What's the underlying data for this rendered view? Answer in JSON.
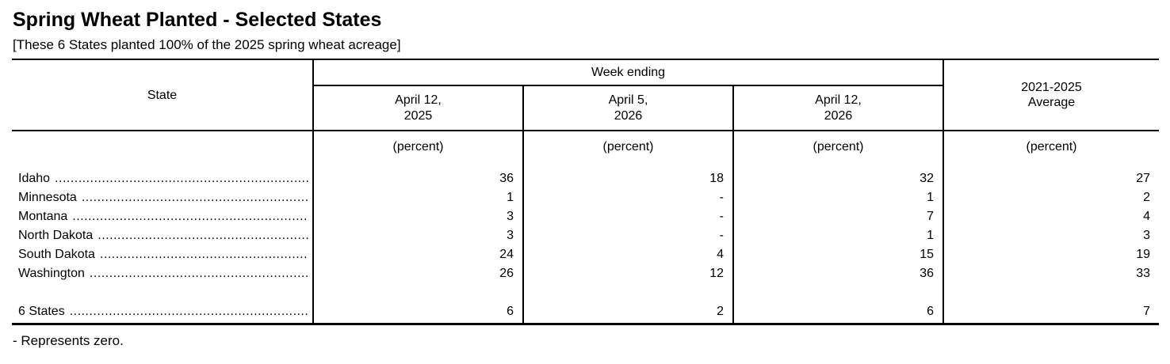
{
  "page": {
    "title": "Spring Wheat Planted - Selected States",
    "subtitle": "[These 6 States planted 100% of the 2025 spring wheat acreage]",
    "footnote": "- Represents zero."
  },
  "table": {
    "headers": {
      "state": "State",
      "week_ending": "Week ending",
      "average": "2021-2025\nAverage",
      "dates": [
        "April 12,\n2025",
        "April 5,\n2026",
        "April 12,\n2026"
      ],
      "unit": "(percent)"
    },
    "leader_dots": "................................................................................",
    "rows": [
      {
        "state": "Idaho",
        "values": [
          "36",
          "18",
          "32",
          "27"
        ]
      },
      {
        "state": "Minnesota",
        "values": [
          "1",
          "-",
          "1",
          "2"
        ]
      },
      {
        "state": "Montana",
        "values": [
          "3",
          "-",
          "7",
          "4"
        ]
      },
      {
        "state": "North Dakota",
        "values": [
          "3",
          "-",
          "1",
          "3"
        ]
      },
      {
        "state": "South Dakota",
        "values": [
          "24",
          "4",
          "15",
          "19"
        ]
      },
      {
        "state": "Washington",
        "values": [
          "26",
          "12",
          "36",
          "33"
        ]
      }
    ],
    "total": {
      "state": "6 States",
      "values": [
        "6",
        "2",
        "6",
        "7"
      ]
    }
  }
}
